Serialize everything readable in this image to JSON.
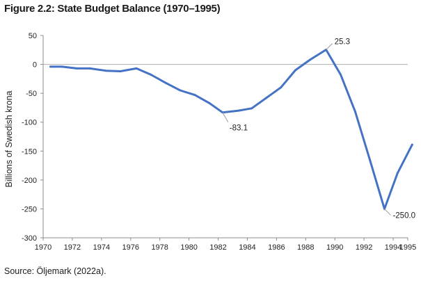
{
  "figure": {
    "title": "Figure 2.2: State Budget Balance (1970–1995)",
    "source": "Source: Öljemark (2022a)."
  },
  "chart_data": {
    "type": "line",
    "title": "Figure 2.2: State Budget Balance (1970–1995)",
    "xlabel": "",
    "ylabel": "Billions of Swedish krona",
    "xlim": [
      1970,
      1995
    ],
    "ylim": [
      -300,
      50
    ],
    "xticks": [
      "1970",
      "1972",
      "1974",
      "1976",
      "1978",
      "1980",
      "1982",
      "1984",
      "1986",
      "1988",
      "1990",
      "1992",
      "1994",
      "1995"
    ],
    "yticks": [
      "50",
      "0",
      "-50",
      "-100",
      "-150",
      "-200",
      "-250",
      "-300"
    ],
    "grid": false,
    "color": "#4472C4",
    "series": [
      {
        "x": [
          1970.5,
          1971.3,
          1972.3,
          1973.2,
          1974.3,
          1975.3,
          1976.4,
          1977.4,
          1978.4,
          1979.4,
          1980.4,
          1981.4,
          1982.3,
          1983.4,
          1984.3,
          1985.3,
          1986.3,
          1987.3,
          1988.3,
          1989.4,
          1990.4,
          1991.4,
          1992.4,
          1993.4,
          1994.3,
          1995.3
        ],
        "y": [
          -4,
          -4,
          -7,
          -7,
          -11,
          -12,
          -7,
          -18,
          -32,
          -45,
          -53,
          -67,
          -83.1,
          -80,
          -76,
          -58,
          -40,
          -10,
          8,
          25.3,
          -18,
          -82,
          -165,
          -250.0,
          -188,
          -139
        ]
      }
    ],
    "annotations": [
      {
        "label": "-83.1",
        "x": 1982.3,
        "y": -83.1,
        "position": "below"
      },
      {
        "label": "25.3",
        "x": 1989.4,
        "y": 25.3,
        "position": "above-right"
      },
      {
        "label": "-250.0",
        "x": 1993.4,
        "y": -250.0,
        "position": "below-right"
      }
    ]
  }
}
